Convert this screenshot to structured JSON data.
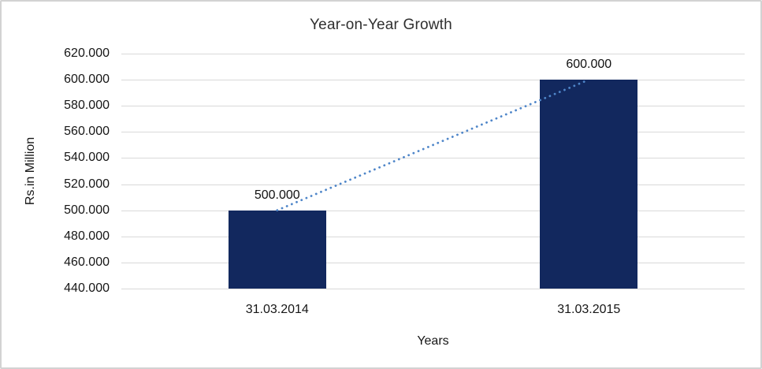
{
  "chart_data": {
    "type": "bar",
    "title": "Year-on-Year Growth",
    "xlabel": "Years",
    "ylabel": "Rs.in Million",
    "categories": [
      "31.03.2014",
      "31.03.2015"
    ],
    "values": [
      500000,
      600000
    ],
    "data_labels": [
      "500.000",
      "600.000"
    ],
    "ylim": [
      440000,
      620000
    ],
    "y_tick_step": 20000,
    "y_ticks": [
      "620.000",
      "600.000",
      "580.000",
      "560.000",
      "540.000",
      "520.000",
      "500.000",
      "480.000",
      "460.000",
      "440.000"
    ],
    "grid": true,
    "legend": false,
    "has_trendline": true,
    "trendline_style": "dotted",
    "colors": {
      "bar": "#12285E",
      "trendline": "#4F86C9",
      "gridline": "#D9D9D9",
      "frame_border": "#D2D2D2",
      "text": "#161616"
    }
  }
}
